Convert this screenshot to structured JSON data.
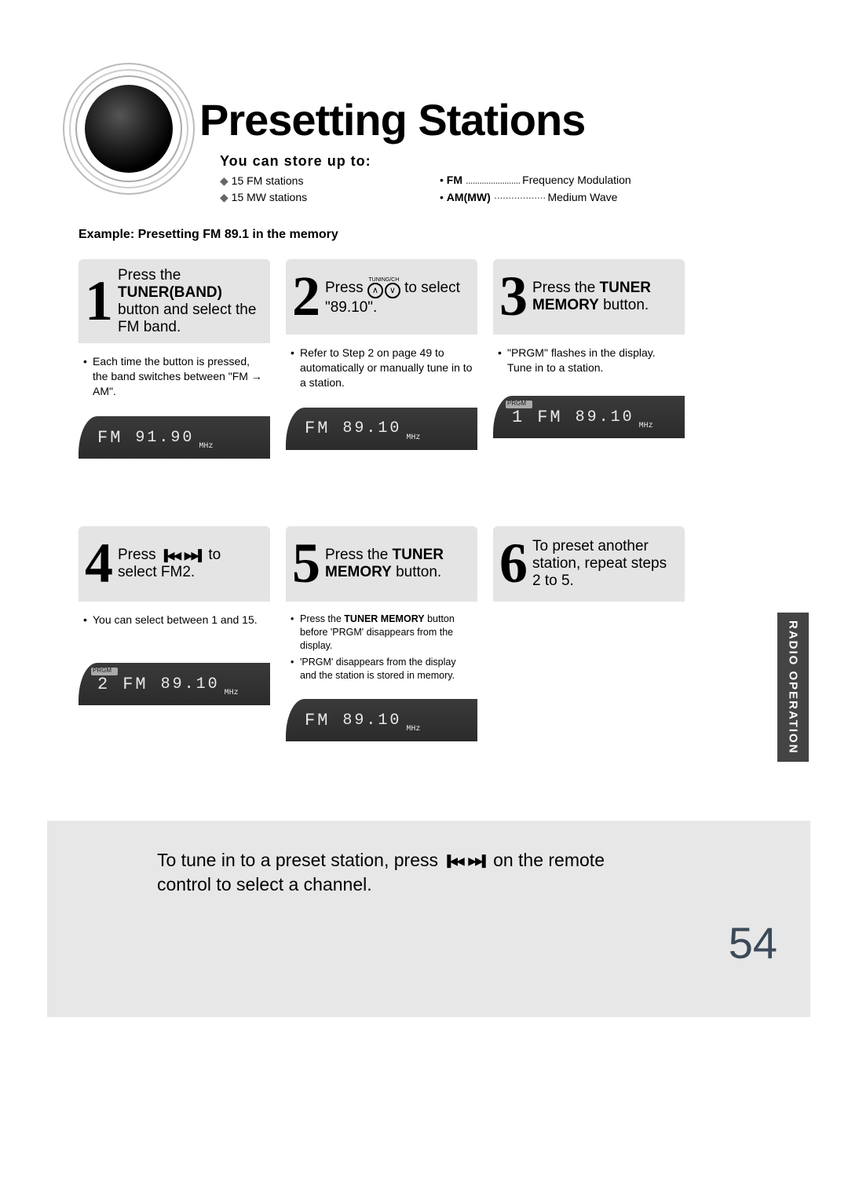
{
  "header": {
    "title": "Presetting Stations",
    "subtitle": "You can store up to:",
    "store_items": [
      "15 FM stations",
      "15 MW stations"
    ],
    "modes": [
      {
        "abbr": "FM",
        "label": "Frequency Modulation"
      },
      {
        "abbr": "AM(MW)",
        "label": "Medium Wave"
      }
    ],
    "example_label": "Example: Presetting FM 89.1 in the memory"
  },
  "steps": {
    "s1": {
      "num": "1",
      "text_pre": "Press the ",
      "text_bold": "TUNER(BAND)",
      "text_post": " button and select the FM band.",
      "body": "Each time the button is pressed, the band switches between \"FM → AM\".",
      "lcd_band": "FM",
      "lcd_freq": "91.90",
      "lcd_unit": "MHz"
    },
    "s2": {
      "num": "2",
      "tuning_label": "TUNING/CH",
      "text_pre": "Press ",
      "text_post": " to select \"89.10\".",
      "body": "Refer to Step 2 on page 49 to automatically or manually tune in to a station.",
      "lcd_band": "FM",
      "lcd_freq": "89.10",
      "lcd_unit": "MHz"
    },
    "s3": {
      "num": "3",
      "text_pre": "Press the ",
      "text_bold": "TUNER MEMORY",
      "text_post": " button.",
      "body": "\"PRGM\" flashes in the display. Tune in to a station.",
      "lcd_prefix": "1",
      "lcd_band": "FM",
      "lcd_freq": "89.10",
      "lcd_unit": "MHz",
      "prgm": "PRGM"
    },
    "s4": {
      "num": "4",
      "text_pre": "Press ",
      "text_post": " to select FM2.",
      "body": "You can select between 1 and 15.",
      "lcd_prefix": "2",
      "lcd_band": "FM",
      "lcd_freq": "89.10",
      "lcd_unit": "MHz",
      "prgm": "PRGM"
    },
    "s5": {
      "num": "5",
      "text_pre": "Press the ",
      "text_bold": "TUNER MEMORY",
      "text_post": " button.",
      "body1_pre": "Press the ",
      "body1_bold": "TUNER MEMORY",
      "body1_post": " button before 'PRGM' disappears from the display.",
      "body2": "'PRGM' disappears from the display and the station is stored in memory.",
      "lcd_band": "FM",
      "lcd_freq": "89.10",
      "lcd_unit": "MHz"
    },
    "s6": {
      "num": "6",
      "text": "To preset another station, repeat steps 2 to 5."
    }
  },
  "footer": {
    "tune_text_pre": "To tune in to a preset station, press ",
    "tune_text_post": " on the remote control to select a channel.",
    "page_number": "54",
    "side_tab": "RADIO OPERATION"
  },
  "colors": {
    "step_head_bg": "#e4e4e4",
    "lcd_bg": "#2f2f2f",
    "lcd_text": "#e8e8e8",
    "footer_bg": "#e7e7e7",
    "page_num_color": "#3b4a58",
    "side_tab_bg": "#444444"
  }
}
